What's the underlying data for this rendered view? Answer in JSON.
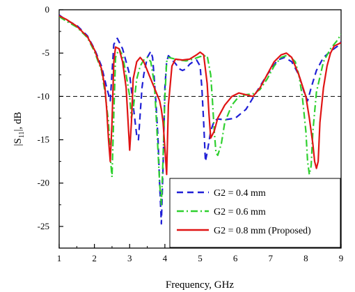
{
  "chart_data": {
    "type": "line",
    "title": "",
    "xlabel": "Frequency, GHz",
    "ylabel_main": "|S",
    "ylabel_sub": "11",
    "ylabel_tail": "|, dB",
    "xlim": [
      1,
      9
    ],
    "ylim": [
      -27.5,
      0
    ],
    "x_ticks": [
      1,
      2,
      3,
      4,
      5,
      6,
      7,
      8,
      9
    ],
    "y_ticks": [
      0,
      -5,
      -10,
      -15,
      -20,
      -25
    ],
    "y_tick_labels": [
      "0",
      "-5",
      "-10",
      "-15",
      "-20",
      "-25"
    ],
    "grid": false,
    "legend_position": "bottom-right",
    "reference_line": {
      "y": -10,
      "style": "dashed",
      "color": "#000000"
    },
    "series": [
      {
        "name": "G2 = 0.4 mm",
        "color": "#1f1fd6",
        "dash": "9,6",
        "x": [
          1.0,
          1.2,
          1.5,
          1.8,
          2.0,
          2.2,
          2.35,
          2.45,
          2.55,
          2.65,
          2.8,
          3.0,
          3.1,
          3.2,
          3.25,
          3.3,
          3.35,
          3.4,
          3.5,
          3.6,
          3.65,
          3.7,
          3.75,
          3.8,
          3.85,
          3.9,
          3.95,
          4.0,
          4.05,
          4.1,
          4.15,
          4.2,
          4.3,
          4.4,
          4.5,
          4.6,
          4.7,
          4.8,
          4.9,
          5.0,
          5.05,
          5.1,
          5.15,
          5.2,
          5.3,
          5.4,
          5.5,
          5.7,
          6.0,
          6.3,
          6.6,
          6.9,
          7.2,
          7.4,
          7.6,
          7.8,
          7.95,
          8.05,
          8.15,
          8.3,
          8.5,
          8.7,
          8.9,
          9.0
        ],
        "y": [
          -0.6,
          -1.2,
          -1.8,
          -3.0,
          -4.5,
          -6.5,
          -9.0,
          -10.5,
          -4.0,
          -3.3,
          -4.5,
          -7.5,
          -11.0,
          -14.5,
          -15.0,
          -12.0,
          -9.0,
          -7.5,
          -5.5,
          -4.8,
          -5.5,
          -8.0,
          -11.0,
          -14.5,
          -20.0,
          -24.7,
          -18.0,
          -9.0,
          -6.0,
          -5.3,
          -5.5,
          -5.8,
          -6.2,
          -6.8,
          -7.0,
          -6.8,
          -6.3,
          -6.0,
          -5.8,
          -6.5,
          -9.0,
          -13.0,
          -17.5,
          -16.5,
          -14.0,
          -12.8,
          -12.6,
          -12.7,
          -12.5,
          -11.5,
          -9.5,
          -7.5,
          -5.8,
          -5.5,
          -6.0,
          -7.5,
          -9.5,
          -10.5,
          -9.0,
          -7.0,
          -5.5,
          -4.8,
          -4.2,
          -3.7
        ]
      },
      {
        "name": "G2 = 0.6 mm",
        "color": "#2fd02f",
        "dash": "10,4,2,4",
        "x": [
          1.0,
          1.2,
          1.5,
          1.8,
          2.0,
          2.2,
          2.3,
          2.4,
          2.45,
          2.5,
          2.55,
          2.6,
          2.7,
          2.8,
          2.9,
          3.0,
          3.05,
          3.1,
          3.2,
          3.3,
          3.4,
          3.5,
          3.6,
          3.7,
          3.75,
          3.8,
          3.85,
          3.9,
          3.95,
          4.0,
          4.05,
          4.1,
          4.2,
          4.4,
          4.6,
          4.8,
          5.0,
          5.2,
          5.3,
          5.35,
          5.4,
          5.45,
          5.5,
          5.6,
          5.7,
          5.9,
          6.1,
          6.3,
          6.5,
          6.7,
          6.9,
          7.1,
          7.3,
          7.5,
          7.7,
          7.8,
          7.9,
          8.0,
          8.05,
          8.1,
          8.15,
          8.2,
          8.3,
          8.5,
          8.7,
          8.9,
          9.0
        ],
        "y": [
          -0.8,
          -1.3,
          -2.0,
          -3.2,
          -4.8,
          -7.0,
          -9.5,
          -13.0,
          -17.0,
          -19.3,
          -12.0,
          -5.5,
          -4.5,
          -5.3,
          -7.5,
          -10.0,
          -12.5,
          -11.5,
          -8.0,
          -6.5,
          -5.8,
          -5.5,
          -6.0,
          -8.5,
          -12.0,
          -16.0,
          -20.0,
          -22.5,
          -17.0,
          -10.0,
          -6.0,
          -5.5,
          -5.6,
          -5.8,
          -5.9,
          -5.7,
          -5.4,
          -5.3,
          -7.5,
          -10.5,
          -14.0,
          -16.5,
          -16.8,
          -15.5,
          -13.0,
          -11.0,
          -10.0,
          -9.8,
          -9.7,
          -9.2,
          -8.0,
          -6.5,
          -5.5,
          -5.2,
          -6.0,
          -7.5,
          -10.0,
          -14.0,
          -17.5,
          -19.0,
          -18.0,
          -14.0,
          -9.5,
          -6.0,
          -4.5,
          -3.5,
          -2.8
        ]
      },
      {
        "name": "G2 = 0.8 mm (Proposed)",
        "color": "#e01414",
        "dash": "",
        "x": [
          1.0,
          1.2,
          1.5,
          1.8,
          2.0,
          2.2,
          2.3,
          2.35,
          2.4,
          2.45,
          2.5,
          2.55,
          2.6,
          2.7,
          2.8,
          2.9,
          2.95,
          3.0,
          3.05,
          3.1,
          3.2,
          3.3,
          3.4,
          3.5,
          3.6,
          3.7,
          3.8,
          3.85,
          3.9,
          3.95,
          4.0,
          4.05,
          4.1,
          4.2,
          4.3,
          4.5,
          4.7,
          4.9,
          5.0,
          5.1,
          5.2,
          5.25,
          5.3,
          5.4,
          5.5,
          5.7,
          5.9,
          6.1,
          6.3,
          6.5,
          6.7,
          6.9,
          7.1,
          7.3,
          7.45,
          7.6,
          7.8,
          8.0,
          8.1,
          8.2,
          8.25,
          8.3,
          8.35,
          8.4,
          8.5,
          8.6,
          8.7,
          8.8,
          8.9,
          9.0
        ],
        "y": [
          -0.7,
          -1.1,
          -1.9,
          -3.1,
          -4.6,
          -6.8,
          -9.0,
          -11.5,
          -15.0,
          -17.5,
          -13.0,
          -6.0,
          -4.3,
          -4.5,
          -6.0,
          -9.0,
          -12.5,
          -16.2,
          -13.0,
          -8.0,
          -6.0,
          -5.5,
          -6.0,
          -7.0,
          -8.0,
          -9.0,
          -10.0,
          -10.5,
          -11.5,
          -13.0,
          -16.0,
          -19.0,
          -11.0,
          -6.5,
          -5.7,
          -5.8,
          -5.7,
          -5.2,
          -4.9,
          -5.2,
          -8.5,
          -12.0,
          -14.8,
          -14.0,
          -12.5,
          -11.0,
          -10.0,
          -9.6,
          -9.8,
          -10.0,
          -9.0,
          -7.5,
          -6.0,
          -5.2,
          -5.0,
          -5.5,
          -7.5,
          -10.0,
          -12.5,
          -15.5,
          -17.5,
          -18.3,
          -17.5,
          -13.0,
          -9.0,
          -6.5,
          -5.0,
          -4.2,
          -4.0,
          -3.8
        ]
      }
    ]
  }
}
